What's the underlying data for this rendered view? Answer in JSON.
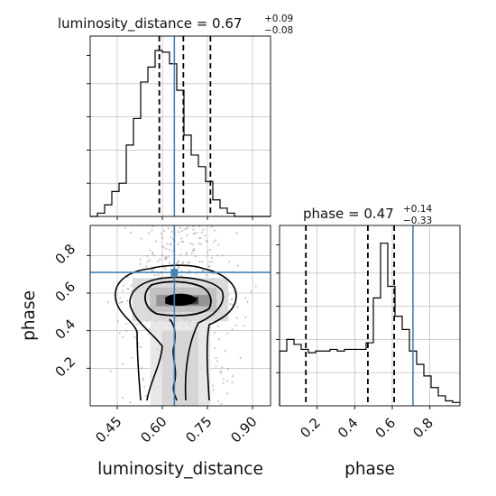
{
  "chart_data": [
    {
      "panel": "hist-luminosity_distance",
      "type": "bar",
      "title_main": "luminosity_distance = 0.67",
      "title_sup": "+0.09",
      "title_sub": "−0.08",
      "xlim": [
        0.36,
        0.96
      ],
      "ylim": [
        0,
        1
      ],
      "bins_start": 0.36,
      "bin_width": 0.024,
      "values": [
        0.0,
        0.02,
        0.07,
        0.15,
        0.2,
        0.43,
        0.59,
        0.81,
        0.9,
        1.0,
        0.99,
        0.92,
        0.76,
        0.49,
        0.37,
        0.3,
        0.21,
        0.1,
        0.05,
        0.02,
        0.0,
        0.0,
        0.0,
        0.0,
        0.0
      ],
      "quantiles": [
        0.59,
        0.67,
        0.76
      ],
      "truth": 0.64,
      "grid": true
    },
    {
      "panel": "corner-2d",
      "type": "heatmap",
      "xlabel": "luminosity_distance",
      "ylabel": "phase",
      "xlim": [
        0.36,
        0.96
      ],
      "ylim": [
        0.0,
        0.96
      ],
      "xticks": [
        "0.45",
        "0.60",
        "0.75",
        "0.90"
      ],
      "xtick_values": [
        0.45,
        0.6,
        0.75,
        0.9
      ],
      "yticks": [
        "0.2",
        "0.4",
        "0.6",
        "0.8"
      ],
      "ytick_values": [
        0.2,
        0.4,
        0.6,
        0.8
      ],
      "truth": [
        0.64,
        0.71
      ],
      "grid": true
    },
    {
      "panel": "hist-phase",
      "type": "bar",
      "title_main": "phase = 0.47",
      "title_sup": "+0.14",
      "title_sub": "−0.33",
      "xlabel": "phase",
      "xlim": [
        0.0,
        0.96
      ],
      "ylim": [
        0,
        1
      ],
      "bins_start": 0.0,
      "bin_width": 0.0384,
      "values": [
        0.33,
        0.4,
        0.37,
        0.34,
        0.32,
        0.33,
        0.33,
        0.34,
        0.33,
        0.34,
        0.34,
        0.34,
        0.38,
        0.65,
        0.98,
        0.72,
        0.54,
        0.46,
        0.33,
        0.25,
        0.18,
        0.11,
        0.06,
        0.03,
        0.02
      ],
      "quantiles": [
        0.14,
        0.47,
        0.61
      ],
      "truth": 0.71,
      "xticks": [
        "0.2",
        "0.4",
        "0.6",
        "0.8"
      ],
      "xtick_values": [
        0.2,
        0.4,
        0.6,
        0.8
      ],
      "grid": true
    }
  ],
  "colors": {
    "truth": "#4682b4",
    "hist": "#000000",
    "grid": "#b0b0b0",
    "density_dark": "#000000",
    "density_light": "#e8e8e8"
  }
}
